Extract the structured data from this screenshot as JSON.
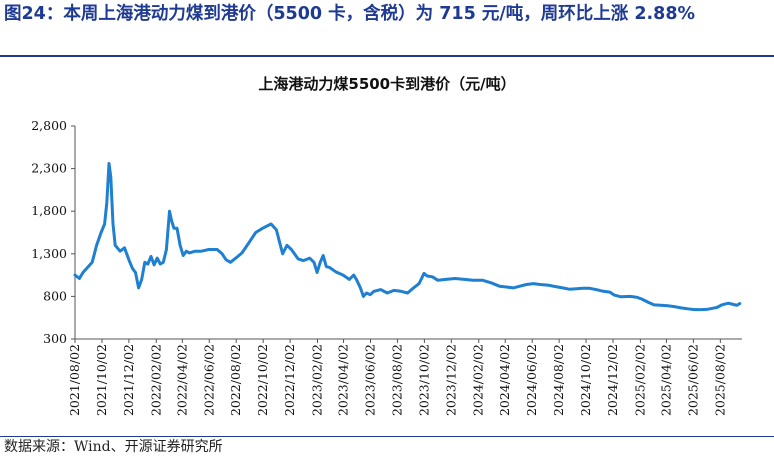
{
  "figure": {
    "title": "图24：本周上海港动力煤到港价（5500 卡，含税）为 715 元/吨，周环比上涨 2.88%",
    "source": "数据来源：Wind、开源证券研究所"
  },
  "colors": {
    "accent": "#1f3a93",
    "series": "#1f7fd0",
    "axis": "#555555"
  },
  "chart_data": {
    "type": "line",
    "title": "上海港动力煤5500卡到港价（元/吨）",
    "xlabel": "",
    "ylabel": "",
    "ylim": [
      300,
      2800
    ],
    "yticks": [
      300,
      800,
      1300,
      1800,
      2300,
      2800
    ],
    "ytick_labels": [
      "300",
      "800",
      "1,300",
      "1,800",
      "2,300",
      "2,800"
    ],
    "xlim": [
      "2021/08/02",
      "2025/09/20"
    ],
    "xticks": [
      "2021/08/02",
      "2021/10/02",
      "2021/12/02",
      "2022/02/02",
      "2022/04/02",
      "2022/06/02",
      "2022/08/02",
      "2022/10/02",
      "2022/12/02",
      "2023/02/02",
      "2023/04/02",
      "2023/06/02",
      "2023/08/02",
      "2023/10/02",
      "2023/12/02",
      "2024/02/02",
      "2024/04/02",
      "2024/06/02",
      "2024/08/02",
      "2024/10/02",
      "2024/12/02",
      "2025/02/02",
      "2025/04/02",
      "2025/06/02",
      "2025/08/02"
    ],
    "grid": false,
    "legend": "none",
    "series": [
      {
        "color": "#1f7fd0",
        "points": [
          [
            "2021/08/02",
            1050
          ],
          [
            "2021/08/12",
            1010
          ],
          [
            "2021/08/20",
            1080
          ],
          [
            "2021/09/01",
            1150
          ],
          [
            "2021/09/10",
            1200
          ],
          [
            "2021/09/20",
            1400
          ],
          [
            "2021/09/30",
            1550
          ],
          [
            "2021/10/08",
            1650
          ],
          [
            "2021/10/13",
            1900
          ],
          [
            "2021/10/18",
            2360
          ],
          [
            "2021/10/22",
            2200
          ],
          [
            "2021/10/27",
            1650
          ],
          [
            "2021/11/01",
            1400
          ],
          [
            "2021/11/12",
            1330
          ],
          [
            "2021/11/22",
            1370
          ],
          [
            "2021/12/02",
            1230
          ],
          [
            "2021/12/10",
            1130
          ],
          [
            "2021/12/17",
            1080
          ],
          [
            "2021/12/24",
            900
          ],
          [
            "2021/12/31",
            1000
          ],
          [
            "2022/01/07",
            1200
          ],
          [
            "2022/01/14",
            1180
          ],
          [
            "2022/01/21",
            1270
          ],
          [
            "2022/01/28",
            1170
          ],
          [
            "2022/02/04",
            1250
          ],
          [
            "2022/02/11",
            1180
          ],
          [
            "2022/02/18",
            1200
          ],
          [
            "2022/02/25",
            1350
          ],
          [
            "2022/03/04",
            1800
          ],
          [
            "2022/03/08",
            1700
          ],
          [
            "2022/03/14",
            1600
          ],
          [
            "2022/03/21",
            1600
          ],
          [
            "2022/03/28",
            1400
          ],
          [
            "2022/04/04",
            1280
          ],
          [
            "2022/04/11",
            1330
          ],
          [
            "2022/04/18",
            1310
          ],
          [
            "2022/05/01",
            1330
          ],
          [
            "2022/05/15",
            1330
          ],
          [
            "2022/06/01",
            1350
          ],
          [
            "2022/06/20",
            1350
          ],
          [
            "2022/07/01",
            1300
          ],
          [
            "2022/07/10",
            1230
          ],
          [
            "2022/07/20",
            1200
          ],
          [
            "2022/08/01",
            1250
          ],
          [
            "2022/08/15",
            1310
          ],
          [
            "2022/09/01",
            1440
          ],
          [
            "2022/09/15",
            1550
          ],
          [
            "2022/10/01",
            1600
          ],
          [
            "2022/10/20",
            1650
          ],
          [
            "2022/11/01",
            1580
          ],
          [
            "2022/11/15",
            1300
          ],
          [
            "2022/11/25",
            1400
          ],
          [
            "2022/12/05",
            1350
          ],
          [
            "2022/12/20",
            1240
          ],
          [
            "2023/01/01",
            1220
          ],
          [
            "2023/01/15",
            1250
          ],
          [
            "2023/01/25",
            1200
          ],
          [
            "2023/02/01",
            1080
          ],
          [
            "2023/02/08",
            1200
          ],
          [
            "2023/02/15",
            1280
          ],
          [
            "2023/02/22",
            1150
          ],
          [
            "2023/03/01",
            1140
          ],
          [
            "2023/03/15",
            1090
          ],
          [
            "2023/04/01",
            1050
          ],
          [
            "2023/04/15",
            1000
          ],
          [
            "2023/04/25",
            1050
          ],
          [
            "2023/05/01",
            1000
          ],
          [
            "2023/05/10",
            900
          ],
          [
            "2023/05/17",
            800
          ],
          [
            "2023/05/24",
            840
          ],
          [
            "2023/06/01",
            820
          ],
          [
            "2023/06/10",
            860
          ],
          [
            "2023/06/25",
            880
          ],
          [
            "2023/07/10",
            840
          ],
          [
            "2023/07/25",
            870
          ],
          [
            "2023/08/10",
            860
          ],
          [
            "2023/08/25",
            840
          ],
          [
            "2023/09/05",
            890
          ],
          [
            "2023/09/20",
            950
          ],
          [
            "2023/10/01",
            1070
          ],
          [
            "2023/10/08",
            1040
          ],
          [
            "2023/10/20",
            1030
          ],
          [
            "2023/11/01",
            990
          ],
          [
            "2023/11/20",
            1000
          ],
          [
            "2023/12/10",
            1010
          ],
          [
            "2024/01/01",
            1000
          ],
          [
            "2024/01/20",
            990
          ],
          [
            "2024/02/10",
            990
          ],
          [
            "2024/03/01",
            960
          ],
          [
            "2024/03/20",
            920
          ],
          [
            "2024/04/05",
            910
          ],
          [
            "2024/04/20",
            900
          ],
          [
            "2024/05/05",
            920
          ],
          [
            "2024/05/20",
            940
          ],
          [
            "2024/06/05",
            950
          ],
          [
            "2024/06/20",
            940
          ],
          [
            "2024/07/10",
            930
          ],
          [
            "2024/07/25",
            915
          ],
          [
            "2024/08/10",
            900
          ],
          [
            "2024/08/25",
            885
          ],
          [
            "2024/09/10",
            890
          ],
          [
            "2024/09/25",
            895
          ],
          [
            "2024/10/10",
            895
          ],
          [
            "2024/10/25",
            880
          ],
          [
            "2024/11/10",
            860
          ],
          [
            "2024/11/25",
            850
          ],
          [
            "2024/12/05",
            815
          ],
          [
            "2024/12/20",
            795
          ],
          [
            "2025/01/10",
            800
          ],
          [
            "2025/01/25",
            790
          ],
          [
            "2025/02/05",
            770
          ],
          [
            "2025/02/20",
            730
          ],
          [
            "2025/03/05",
            700
          ],
          [
            "2025/03/20",
            695
          ],
          [
            "2025/04/05",
            690
          ],
          [
            "2025/04/20",
            680
          ],
          [
            "2025/05/05",
            665
          ],
          [
            "2025/05/20",
            655
          ],
          [
            "2025/06/05",
            645
          ],
          [
            "2025/06/20",
            645
          ],
          [
            "2025/07/05",
            650
          ],
          [
            "2025/07/15",
            660
          ],
          [
            "2025/07/25",
            670
          ],
          [
            "2025/08/05",
            700
          ],
          [
            "2025/08/20",
            720
          ],
          [
            "2025/09/01",
            705
          ],
          [
            "2025/09/08",
            695
          ],
          [
            "2025/09/15",
            715
          ]
        ]
      }
    ]
  }
}
